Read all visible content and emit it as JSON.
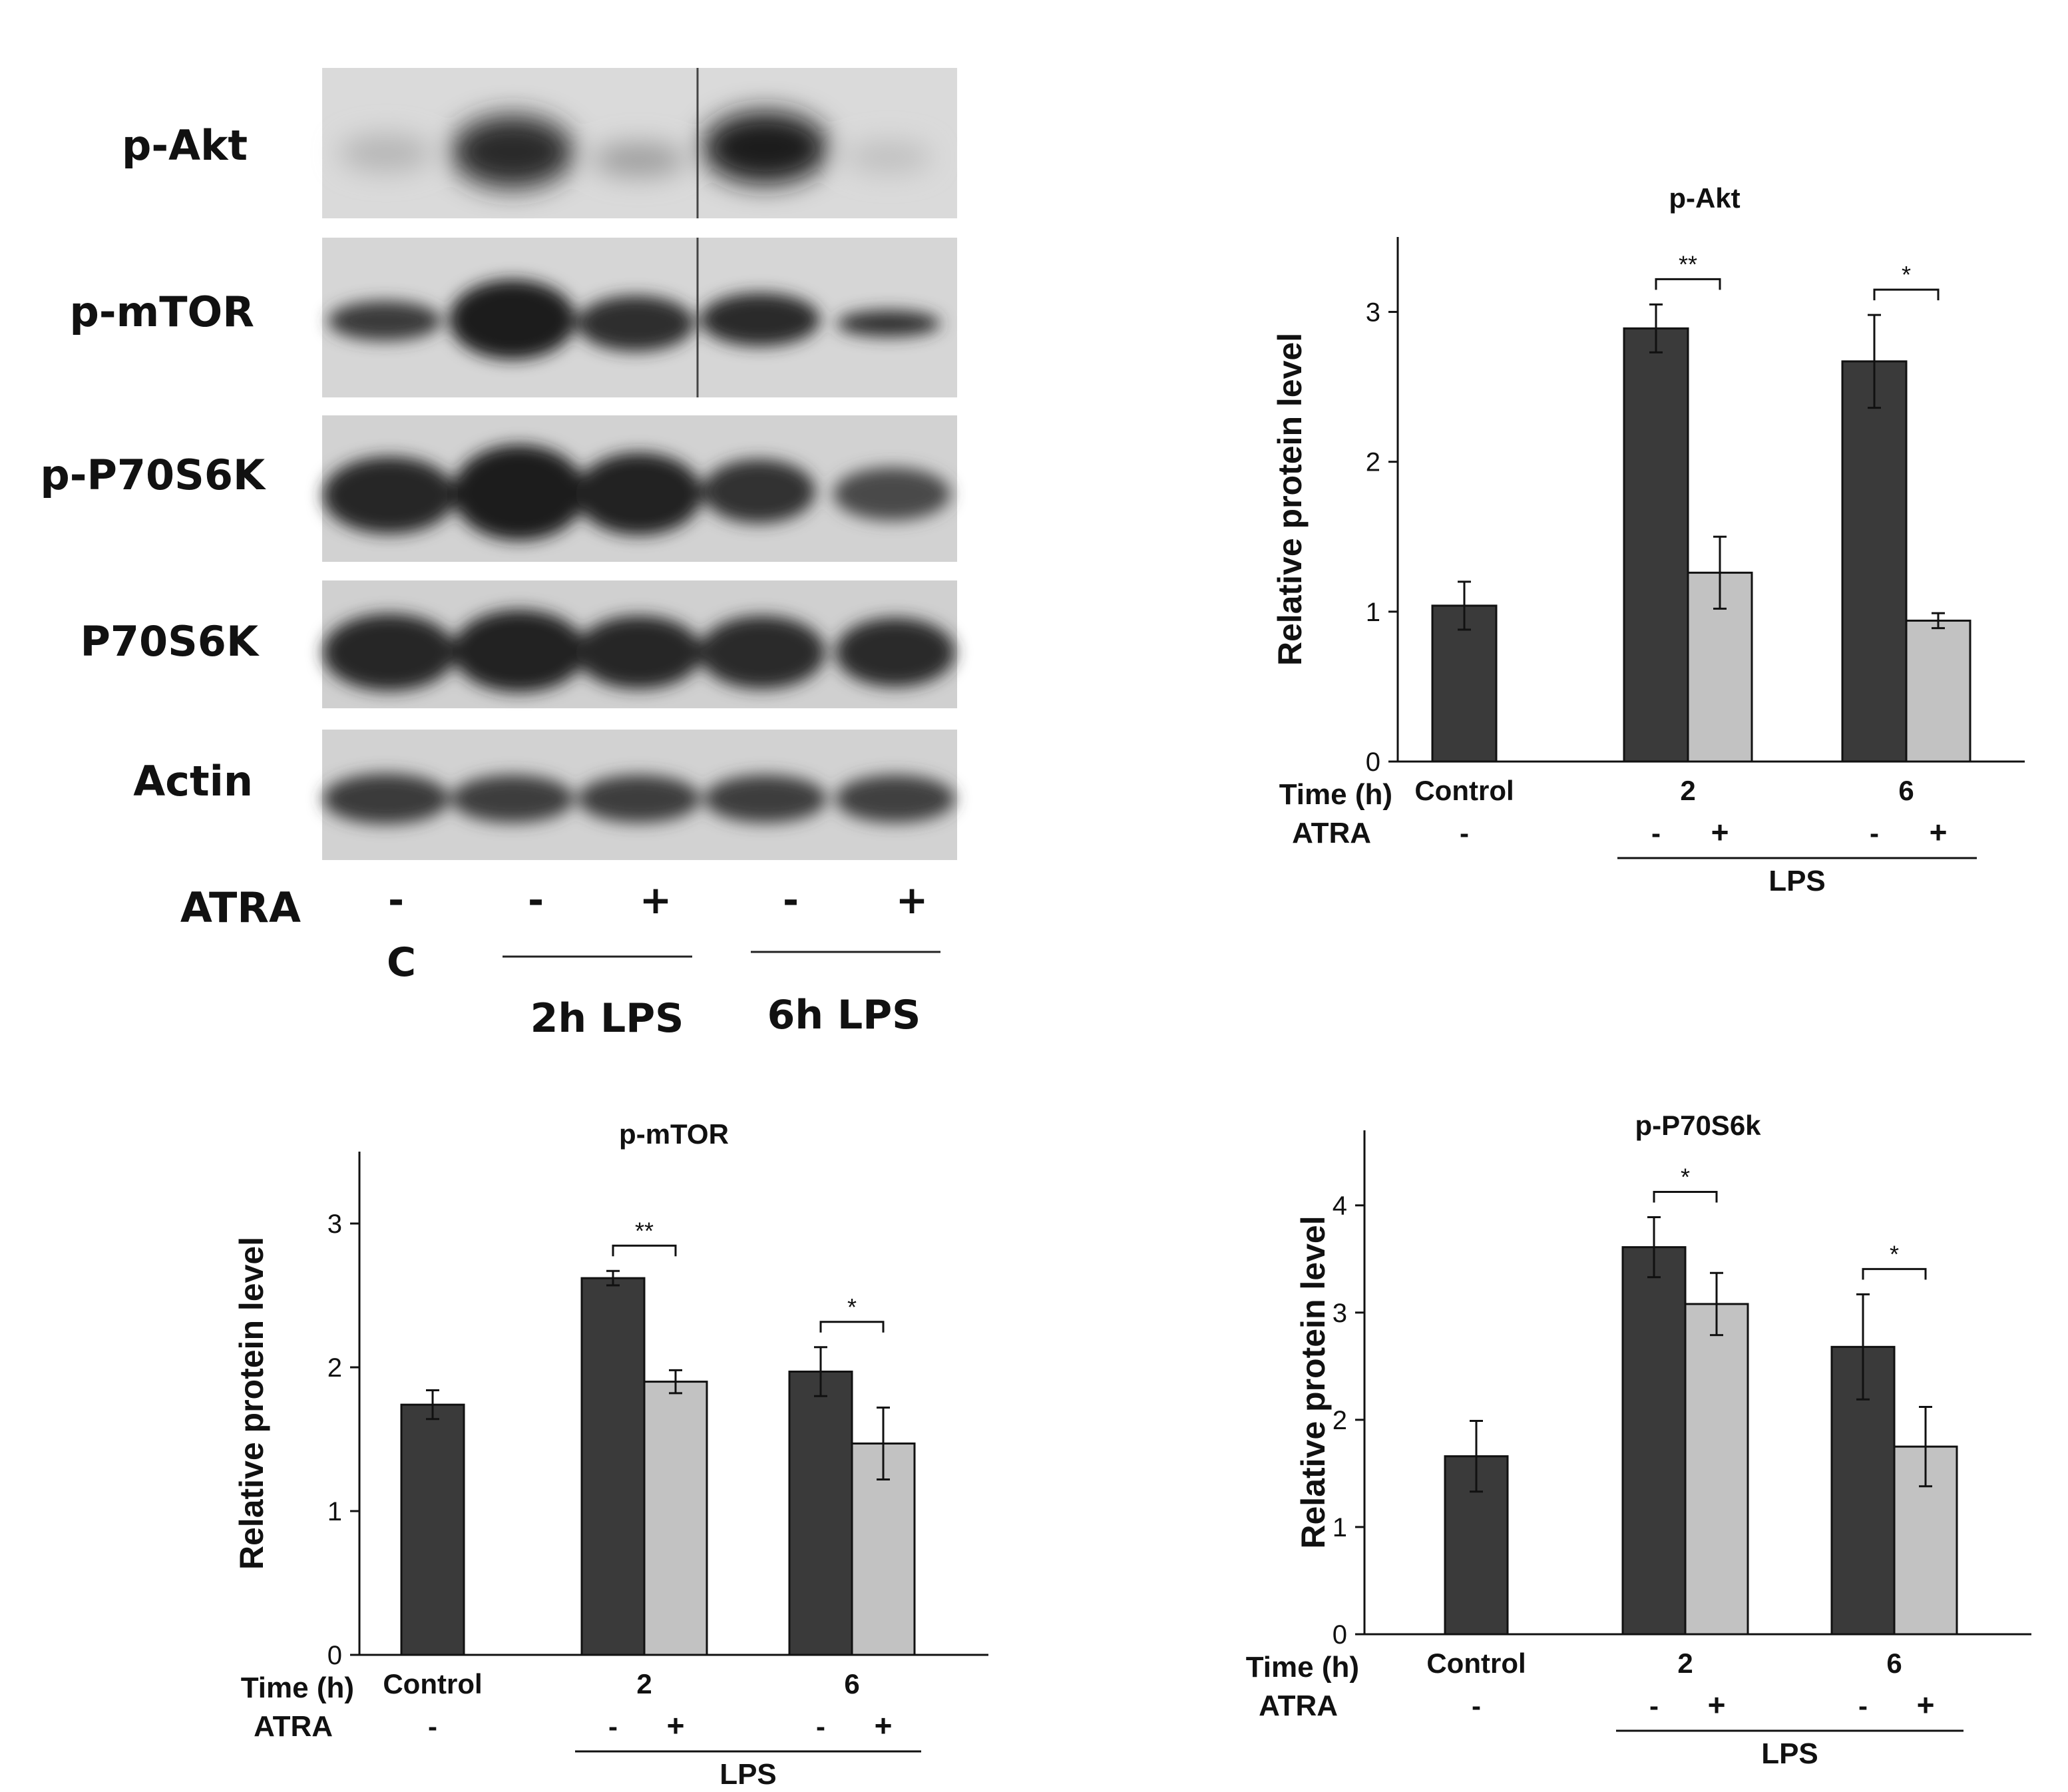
{
  "western_blot": {
    "rows": [
      "p-Akt",
      "p-mTOR",
      "p-P70S6K",
      "P70S6K",
      "Actin"
    ],
    "atra_label": "ATRA",
    "atra_signs": [
      "-",
      "-",
      "+",
      "-",
      "+"
    ],
    "control_label": "C",
    "group_labels": [
      "2h LPS",
      "6h LPS"
    ]
  },
  "axis_text": {
    "time_label": "Time (h)",
    "atra_label": "ATRA",
    "lps_label": "LPS",
    "group_labels": [
      "Control",
      "2",
      "6"
    ],
    "control_sign": "-",
    "sign_minus": "-",
    "sign_plus": "+"
  },
  "colors": {
    "lps_only": "#3a3a3a",
    "lps_atra": "#c2c2c2"
  },
  "chart_data": [
    {
      "type": "bar",
      "title": "p-Akt",
      "ylabel": "Relative protein level",
      "ylim": [
        0,
        3.5
      ],
      "yticks": [
        0,
        1,
        2,
        3
      ],
      "bars": [
        {
          "group": "Control",
          "atra": "-",
          "value": 1.04,
          "error": 0.16
        },
        {
          "group": "2",
          "atra": "-",
          "value": 2.89,
          "error": 0.16
        },
        {
          "group": "2",
          "atra": "+",
          "value": 1.26,
          "error": 0.24
        },
        {
          "group": "6",
          "atra": "-",
          "value": 2.67,
          "error": 0.31
        },
        {
          "group": "6",
          "atra": "+",
          "value": 0.94,
          "error": 0.05
        }
      ],
      "significance": [
        {
          "group": "2",
          "label": "**"
        },
        {
          "group": "6",
          "label": "*"
        }
      ]
    },
    {
      "type": "bar",
      "title": "p-mTOR",
      "ylabel": "Relative protein level",
      "ylim": [
        0,
        3.5
      ],
      "yticks": [
        0,
        1,
        2,
        3
      ],
      "bars": [
        {
          "group": "Control",
          "atra": "-",
          "value": 1.74,
          "error": 0.1
        },
        {
          "group": "2",
          "atra": "-",
          "value": 2.62,
          "error": 0.05
        },
        {
          "group": "2",
          "atra": "+",
          "value": 1.9,
          "error": 0.08
        },
        {
          "group": "6",
          "atra": "-",
          "value": 1.97,
          "error": 0.17
        },
        {
          "group": "6",
          "atra": "+",
          "value": 1.47,
          "error": 0.25
        }
      ],
      "significance": [
        {
          "group": "2",
          "label": "**"
        },
        {
          "group": "6",
          "label": "*"
        }
      ]
    },
    {
      "type": "bar",
      "title": "p-P70S6k",
      "ylabel": "Relative protein level",
      "ylim": [
        0,
        4.7
      ],
      "yticks": [
        0,
        1,
        2,
        3,
        4
      ],
      "bars": [
        {
          "group": "Control",
          "atra": "-",
          "value": 1.66,
          "error": 0.33
        },
        {
          "group": "2",
          "atra": "-",
          "value": 3.61,
          "error": 0.28
        },
        {
          "group": "2",
          "atra": "+",
          "value": 3.08,
          "error": 0.29
        },
        {
          "group": "6",
          "atra": "-",
          "value": 2.68,
          "error": 0.49
        },
        {
          "group": "6",
          "atra": "+",
          "value": 1.75,
          "error": 0.37
        }
      ],
      "significance": [
        {
          "group": "2",
          "label": "*"
        },
        {
          "group": "6",
          "label": "*"
        }
      ]
    }
  ]
}
